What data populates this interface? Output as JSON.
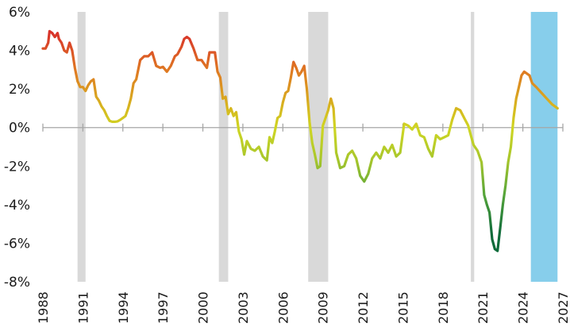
{
  "chart_data": {
    "type": "line",
    "title": "",
    "xlabel": "",
    "ylabel": "",
    "xlim": [
      1988,
      2027
    ],
    "ylim": [
      -8,
      6
    ],
    "y_ticks": [
      "6%",
      "4%",
      "2%",
      "0%",
      "-2%",
      "-4%",
      "-6%",
      "-8%"
    ],
    "y_tick_values": [
      6,
      4,
      2,
      0,
      -2,
      -4,
      -6,
      -8
    ],
    "x_ticks": [
      "1988",
      "1991",
      "1994",
      "1997",
      "2000",
      "2003",
      "2006",
      "2009",
      "2012",
      "2015",
      "2018",
      "2021",
      "2024",
      "2027"
    ],
    "x_tick_values": [
      1988,
      1991,
      1994,
      1997,
      2000,
      2003,
      2006,
      2009,
      2012,
      2015,
      2018,
      2021,
      2024,
      2027
    ],
    "grid": false,
    "legend": null,
    "recession_bands": [
      [
        1990.6,
        1991.2
      ],
      [
        2001.2,
        2001.9
      ],
      [
        2007.9,
        2009.4
      ],
      [
        2020.1,
        2020.35
      ]
    ],
    "forecast_band": [
      2024.6,
      2026.6
    ],
    "colors": {
      "recession": "#d9d9d9",
      "forecast": "#87ceeb",
      "axis": "#a6a6a6",
      "gradient_high": "#d42a22",
      "gradient_mid": "#d7c21f",
      "gradient_zero": "#cde22a",
      "gradient_low": "#0e6b3a"
    },
    "series": [
      {
        "name": "value",
        "x": [
          1988.0,
          1988.2,
          1988.4,
          1988.5,
          1988.7,
          1988.9,
          1989.1,
          1989.2,
          1989.4,
          1989.6,
          1989.8,
          1990.0,
          1990.2,
          1990.4,
          1990.6,
          1990.8,
          1991.0,
          1991.2,
          1991.4,
          1991.6,
          1991.8,
          1992.0,
          1992.2,
          1992.4,
          1992.6,
          1992.8,
          1993.0,
          1993.2,
          1993.4,
          1993.6,
          1993.8,
          1994.0,
          1994.2,
          1994.4,
          1994.6,
          1994.8,
          1995.0,
          1995.3,
          1995.6,
          1995.9,
          1996.2,
          1996.5,
          1996.8,
          1997.0,
          1997.3,
          1997.6,
          1997.9,
          1998.1,
          1998.4,
          1998.6,
          1998.8,
          1999.0,
          1999.3,
          1999.6,
          1999.9,
          2000.1,
          2000.3,
          2000.5,
          2000.7,
          2000.9,
          2001.1,
          2001.3,
          2001.5,
          2001.7,
          2001.9,
          2002.1,
          2002.3,
          2002.5,
          2002.7,
          2002.9,
          2003.1,
          2003.3,
          2003.6,
          2003.9,
          2004.2,
          2004.5,
          2004.8,
          2005.0,
          2005.2,
          2005.4,
          2005.6,
          2005.8,
          2006.0,
          2006.2,
          2006.4,
          2006.6,
          2006.8,
          2007.0,
          2007.2,
          2007.4,
          2007.6,
          2007.8,
          2008.0,
          2008.2,
          2008.4,
          2008.6,
          2008.8,
          2009.0,
          2009.2,
          2009.4,
          2009.6,
          2009.8,
          2010.0,
          2010.3,
          2010.6,
          2010.9,
          2011.2,
          2011.5,
          2011.8,
          2012.1,
          2012.4,
          2012.7,
          2013.0,
          2013.3,
          2013.6,
          2013.9,
          2014.2,
          2014.5,
          2014.8,
          2015.1,
          2015.4,
          2015.7,
          2016.0,
          2016.3,
          2016.6,
          2016.9,
          2017.2,
          2017.5,
          2017.8,
          2018.1,
          2018.4,
          2018.7,
          2019.0,
          2019.3,
          2019.6,
          2019.9,
          2020.1,
          2020.3,
          2020.6,
          2020.9,
          2021.1,
          2021.3,
          2021.5,
          2021.7,
          2021.9,
          2022.1,
          2022.3,
          2022.5,
          2022.7,
          2022.9,
          2023.1,
          2023.3,
          2023.5,
          2023.7,
          2023.9,
          2024.1,
          2024.3,
          2024.5,
          2024.7,
          2025.0,
          2025.4,
          2025.8,
          2026.2,
          2026.6
        ],
        "values": [
          4.1,
          4.1,
          4.4,
          5.0,
          4.9,
          4.7,
          4.9,
          4.6,
          4.4,
          4.0,
          3.9,
          4.4,
          4.0,
          3.1,
          2.4,
          2.1,
          2.1,
          1.9,
          2.2,
          2.4,
          2.5,
          1.6,
          1.4,
          1.1,
          0.9,
          0.6,
          0.35,
          0.3,
          0.3,
          0.32,
          0.4,
          0.5,
          0.6,
          1.0,
          1.5,
          2.3,
          2.5,
          3.5,
          3.7,
          3.7,
          3.9,
          3.2,
          3.1,
          3.15,
          2.9,
          3.2,
          3.7,
          3.8,
          4.2,
          4.6,
          4.7,
          4.6,
          4.1,
          3.5,
          3.5,
          3.3,
          3.1,
          3.9,
          3.9,
          3.9,
          2.9,
          2.6,
          1.5,
          1.6,
          0.7,
          1.0,
          0.6,
          0.8,
          -0.2,
          -0.6,
          -1.4,
          -0.7,
          -1.1,
          -1.2,
          -1.0,
          -1.5,
          -1.7,
          -0.5,
          -0.8,
          -0.2,
          0.5,
          0.6,
          1.3,
          1.8,
          1.9,
          2.6,
          3.4,
          3.1,
          2.7,
          2.9,
          3.2,
          2.0,
          0.3,
          -0.8,
          -1.4,
          -2.1,
          -2.0,
          0.1,
          0.5,
          0.9,
          1.5,
          1.0,
          -1.3,
          -2.1,
          -2.0,
          -1.4,
          -1.2,
          -1.6,
          -2.5,
          -2.8,
          -2.4,
          -1.6,
          -1.3,
          -1.6,
          -1.0,
          -1.3,
          -0.9,
          -1.5,
          -1.3,
          0.2,
          0.1,
          -0.1,
          0.2,
          -0.4,
          -0.5,
          -1.1,
          -1.5,
          -0.4,
          -0.6,
          -0.5,
          -0.4,
          0.4,
          1.0,
          0.9,
          0.5,
          0.1,
          -0.4,
          -0.9,
          -1.2,
          -1.8,
          -3.5,
          -4.0,
          -4.4,
          -5.8,
          -6.3,
          -6.4,
          -5.2,
          -4.0,
          -3.0,
          -1.8,
          -1.0,
          0.5,
          1.5,
          2.1,
          2.7,
          2.9,
          2.8,
          2.7,
          2.3,
          2.1,
          1.8,
          1.5,
          1.2,
          1.0
        ]
      }
    ]
  }
}
